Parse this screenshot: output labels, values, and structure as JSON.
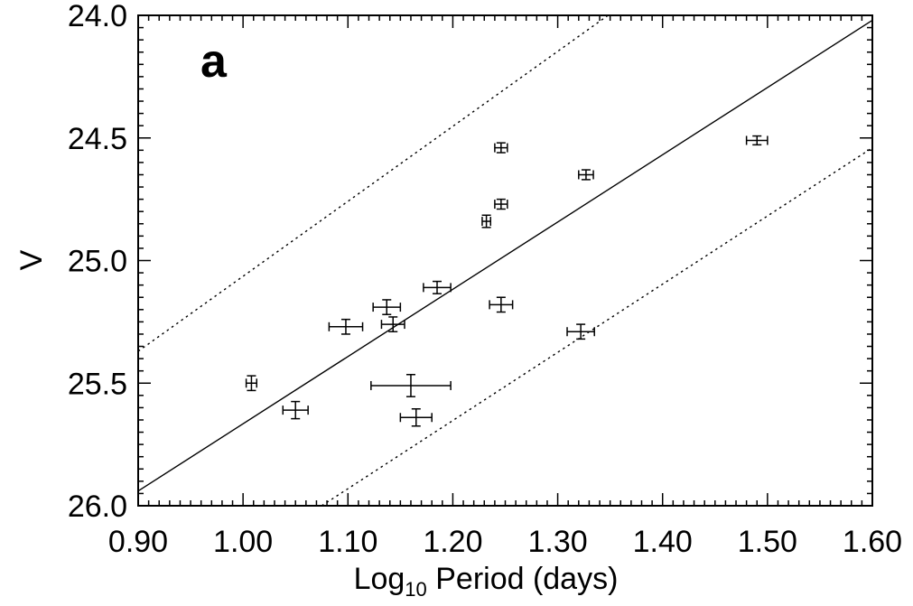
{
  "chart_data": {
    "type": "scatter",
    "panel_label": "a",
    "xlabel": {
      "prefix": "Log",
      "subscript": "10",
      "suffix": " Period (days)"
    },
    "ylabel": "V",
    "xlim": [
      0.9,
      1.6
    ],
    "ylim": [
      26.0,
      24.0
    ],
    "y_inverted": true,
    "xticks": [
      "0.90",
      "1.00",
      "1.10",
      "1.20",
      "1.30",
      "1.40",
      "1.50",
      "1.60"
    ],
    "yticks": [
      "24.0",
      "24.5",
      "25.0",
      "25.5",
      "26.0"
    ],
    "grid": false,
    "points": [
      {
        "x": 1.008,
        "y": 25.5,
        "xerr": 0.005,
        "yerr": 0.03
      },
      {
        "x": 1.05,
        "y": 25.61,
        "xerr": 0.012,
        "yerr": 0.035
      },
      {
        "x": 1.098,
        "y": 25.27,
        "xerr": 0.016,
        "yerr": 0.03
      },
      {
        "x": 1.137,
        "y": 25.19,
        "xerr": 0.013,
        "yerr": 0.03
      },
      {
        "x": 1.143,
        "y": 25.26,
        "xerr": 0.011,
        "yerr": 0.03
      },
      {
        "x": 1.16,
        "y": 25.51,
        "xerr": 0.038,
        "yerr": 0.045
      },
      {
        "x": 1.165,
        "y": 25.64,
        "xerr": 0.015,
        "yerr": 0.035
      },
      {
        "x": 1.185,
        "y": 25.11,
        "xerr": 0.013,
        "yerr": 0.025
      },
      {
        "x": 1.232,
        "y": 24.84,
        "xerr": 0.004,
        "yerr": 0.025
      },
      {
        "x": 1.246,
        "y": 24.54,
        "xerr": 0.006,
        "yerr": 0.02
      },
      {
        "x": 1.246,
        "y": 24.77,
        "xerr": 0.006,
        "yerr": 0.02
      },
      {
        "x": 1.246,
        "y": 25.18,
        "xerr": 0.011,
        "yerr": 0.03
      },
      {
        "x": 1.322,
        "y": 25.29,
        "xerr": 0.013,
        "yerr": 0.03
      },
      {
        "x": 1.327,
        "y": 24.65,
        "xerr": 0.007,
        "yerr": 0.02
      },
      {
        "x": 1.49,
        "y": 24.51,
        "xerr": 0.01,
        "yerr": 0.018
      }
    ],
    "lines": [
      {
        "style": "solid",
        "x": [
          0.9,
          1.6
        ],
        "y": [
          25.94,
          24.02
        ]
      },
      {
        "style": "dotted",
        "x": [
          0.9,
          1.348
        ],
        "y": [
          25.37,
          24.0
        ]
      },
      {
        "style": "dotted",
        "x": [
          1.075,
          1.6
        ],
        "y": [
          26.0,
          24.54
        ]
      }
    ]
  }
}
